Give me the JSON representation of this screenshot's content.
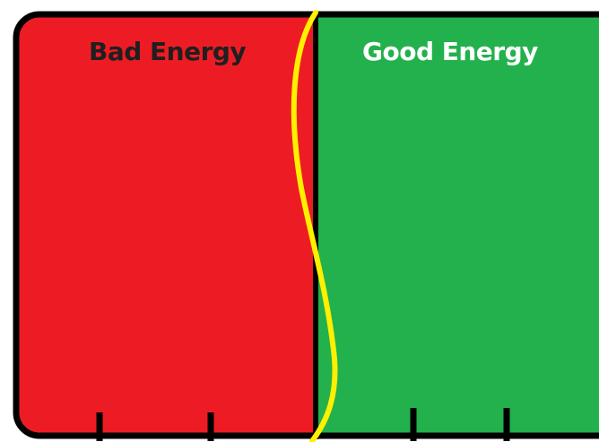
{
  "panels": {
    "left": {
      "label": "Bad Energy",
      "fill": "#ed1c24",
      "label_color": "#1f1f1f"
    },
    "right": {
      "label": "Good Energy",
      "fill": "#22b14c",
      "label_color": "#ffffff"
    }
  },
  "divider_color": "#ffef00",
  "outline_color": "#000000"
}
